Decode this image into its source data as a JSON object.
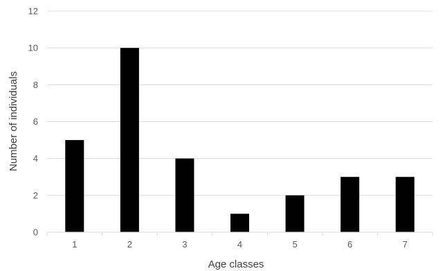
{
  "chart_data": {
    "type": "bar",
    "categories": [
      "1",
      "2",
      "3",
      "4",
      "5",
      "6",
      "7"
    ],
    "values": [
      5,
      10,
      4,
      1,
      2,
      3,
      3
    ],
    "xlabel": "Age classes",
    "ylabel": "Number of individuals",
    "ylim": [
      0,
      12
    ],
    "yticks": [
      0,
      2,
      4,
      6,
      8,
      10,
      12
    ],
    "grid": true,
    "legend": "none",
    "bar_color": "#000000"
  }
}
